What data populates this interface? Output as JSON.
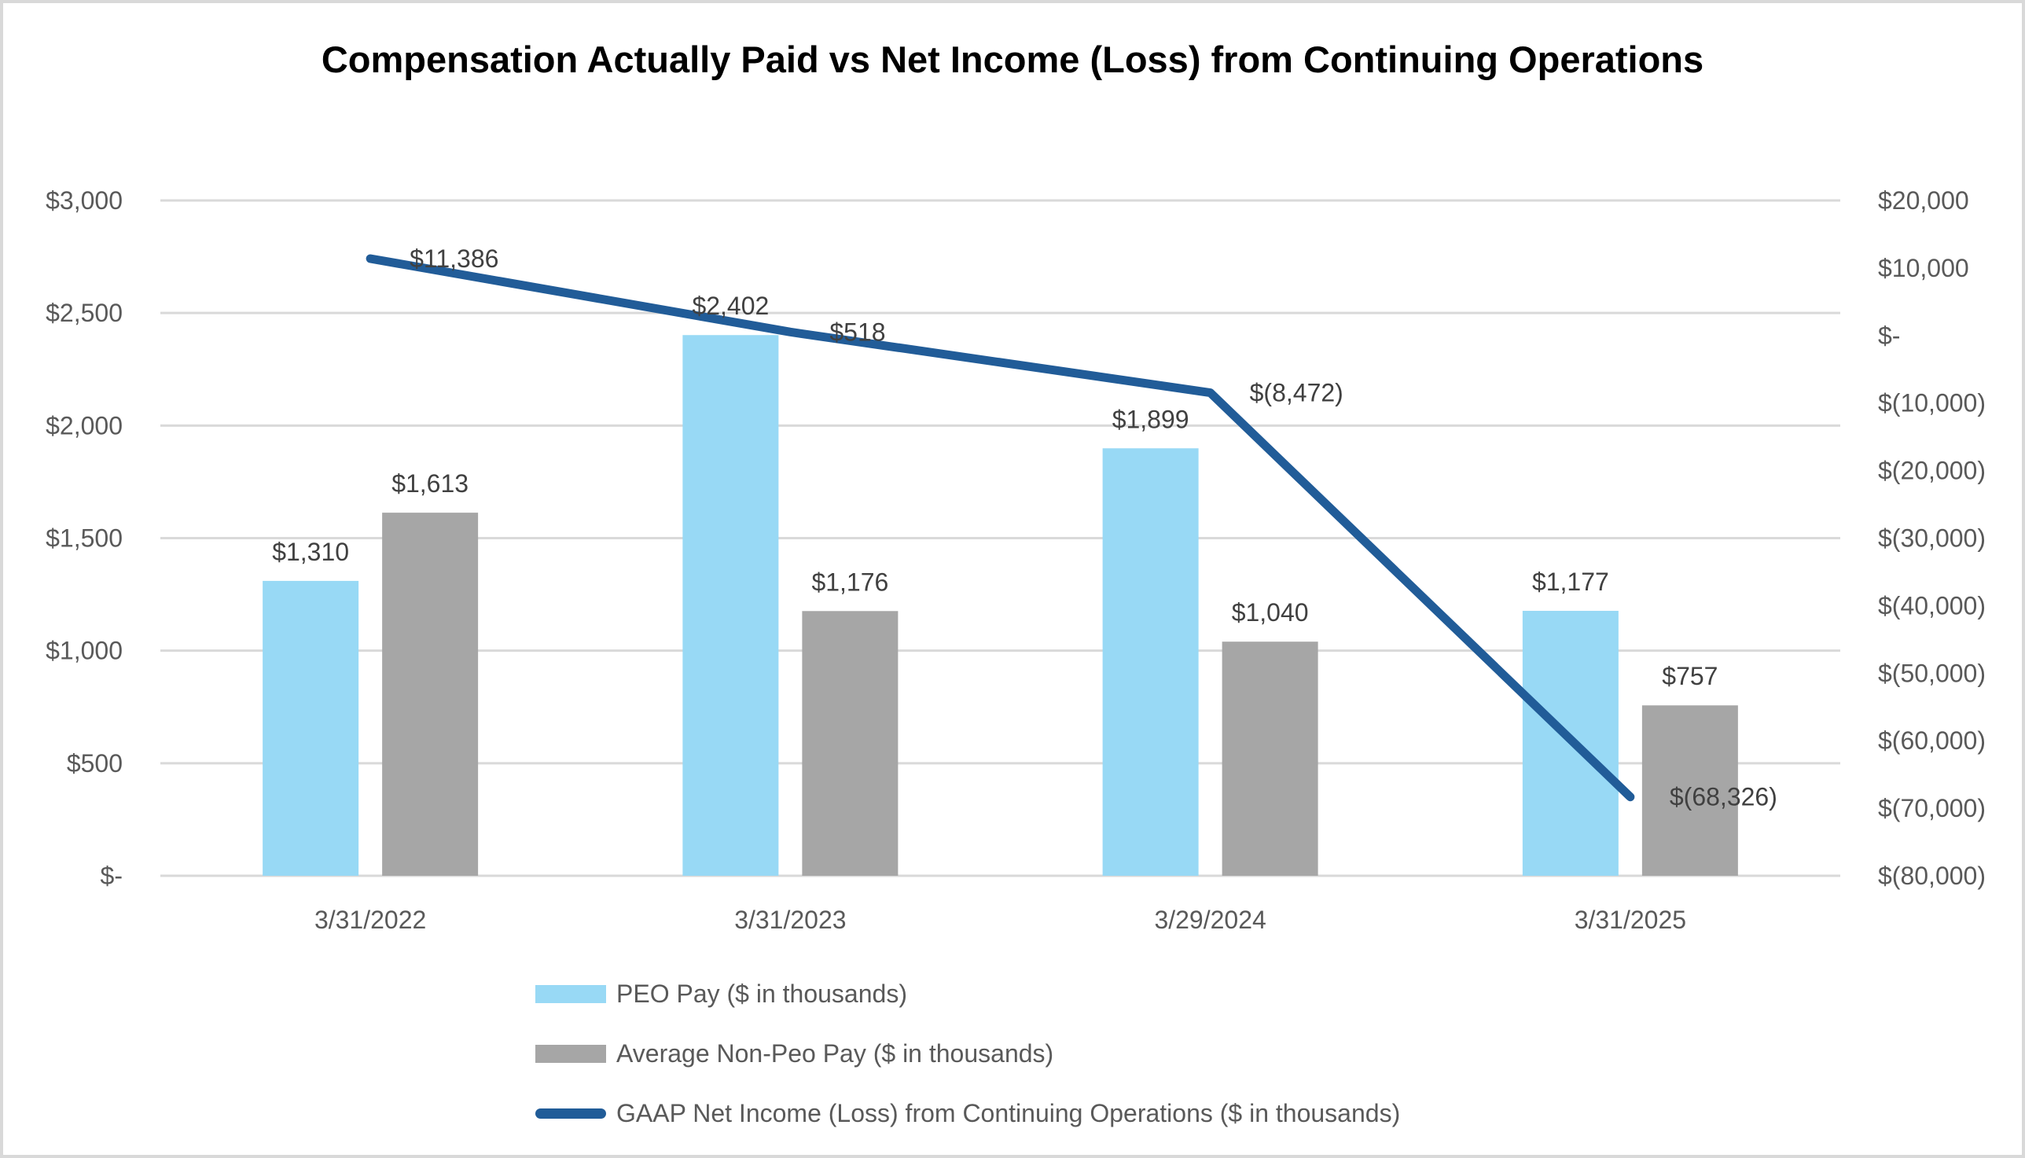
{
  "chart_data": {
    "type": "combo-bar-line",
    "title": "Compensation Actually Paid vs Net Income (Loss) from Continuing Operations",
    "categories": [
      "3/31/2022",
      "3/31/2023",
      "3/29/2024",
      "3/31/2025"
    ],
    "bar_series": [
      {
        "id": "peo-pay",
        "name": "PEO Pay ($ in thousands)",
        "color": "#98D9F5",
        "axis": "left",
        "values": [
          1310,
          2402,
          1899,
          1177
        ],
        "labels": [
          "$1,310",
          "$2,402",
          "$1,899",
          "$1,177"
        ]
      },
      {
        "id": "avg-non-peo-pay",
        "name": "Average Non-Peo Pay ($ in thousands)",
        "color": "#A6A6A6",
        "axis": "left",
        "values": [
          1613,
          1176,
          1040,
          757
        ],
        "labels": [
          "$1,613",
          "$1,176",
          "$1,040",
          "$757"
        ]
      }
    ],
    "line_series": [
      {
        "id": "gaap-net-income",
        "name": "GAAP Net Income (Loss) from Continuing Operations ($ in thousands)",
        "color": "#215C98",
        "axis": "right",
        "values": [
          11386,
          518,
          -8472,
          -68326
        ],
        "labels": [
          "$11,386",
          "$518",
          "$(8,472)",
          "$(68,326)"
        ]
      }
    ],
    "left_axis": {
      "min": 0,
      "max": 3000,
      "tick_labels": [
        "$3,000",
        "$2,500",
        "$2,000",
        "$1,500",
        "$1,000",
        "$500",
        "$-"
      ]
    },
    "right_axis": {
      "min": -80000,
      "max": 20000,
      "tick_labels": [
        "$20,000",
        "$10,000",
        "$-",
        "$(10,000)",
        "$(20,000)",
        "$(30,000)",
        "$(40,000)",
        "$(50,000)",
        "$(60,000)",
        "$(70,000)",
        "$(80,000)"
      ]
    },
    "grid": true,
    "legend_position": "bottom-left",
    "colors": {
      "gridline": "#D9D9D9",
      "axis_text": "#595959",
      "category_text": "#595959",
      "data_label_text": "#404040",
      "legend_text": "#595959",
      "title_text": "#000000",
      "border": "#D9D9D9",
      "background": "#FFFFFF"
    }
  }
}
